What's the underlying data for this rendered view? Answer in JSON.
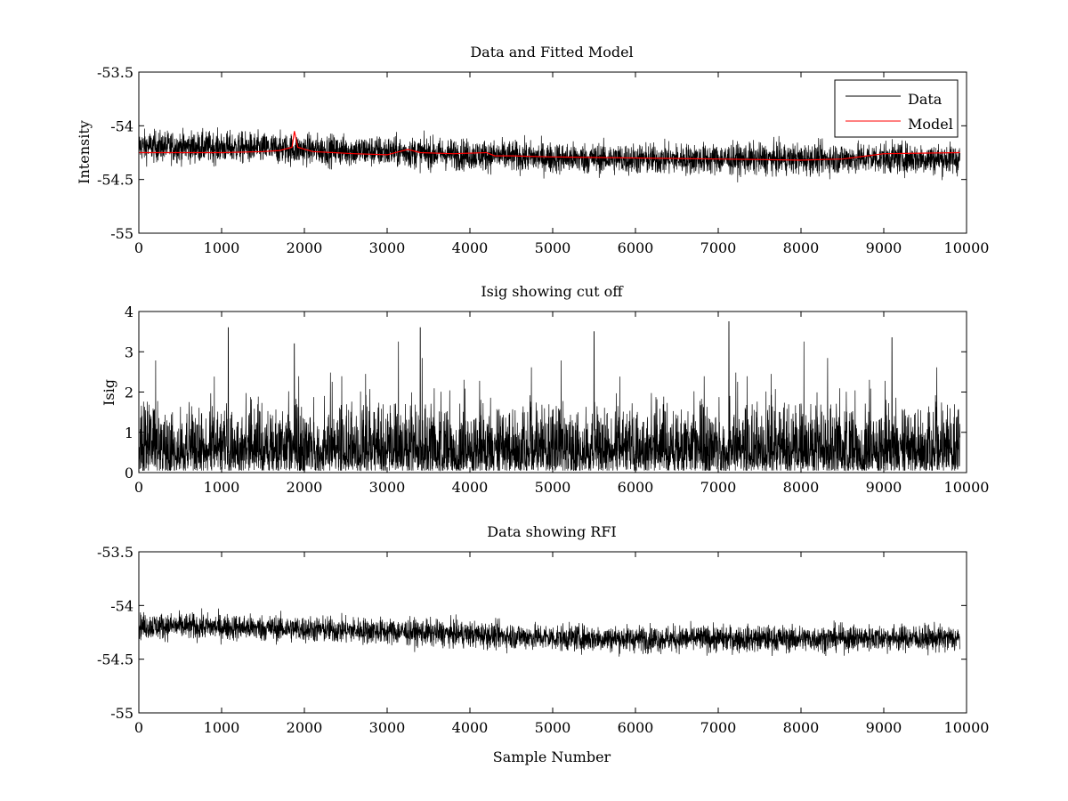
{
  "figure": {
    "background": "#ffffff",
    "data_color": "#000000",
    "model_color": "#ff0000"
  },
  "chart_data": [
    {
      "type": "line",
      "title": "Data and Fitted Model",
      "xlabel": "",
      "ylabel": "Intensity",
      "xlim": [
        0,
        10000
      ],
      "ylim": [
        -55,
        -53.5
      ],
      "xticks": [
        0,
        1000,
        2000,
        3000,
        4000,
        5000,
        6000,
        7000,
        8000,
        9000,
        10000
      ],
      "yticks": [
        -55,
        -54.5,
        -54,
        -53.5
      ],
      "ytick_labels": [
        "-55",
        "-54.5",
        "-54",
        "-53.5"
      ],
      "legend": {
        "position": "top-right",
        "entries": [
          "Data",
          "Model"
        ]
      },
      "series": [
        {
          "name": "Data",
          "color": "#000000",
          "style": "noise",
          "x_end": 9920,
          "trend_x": [
            0,
            1000,
            2000,
            3000,
            4000,
            5000,
            6000,
            7000,
            8000,
            9000,
            9920
          ],
          "trend_y": [
            -54.19,
            -54.2,
            -54.22,
            -54.24,
            -54.27,
            -54.3,
            -54.31,
            -54.31,
            -54.31,
            -54.3,
            -54.31
          ],
          "spread": 0.13
        },
        {
          "name": "Model",
          "color": "#ff0000",
          "style": "smooth",
          "x": [
            0,
            1000,
            1500,
            1700,
            1850,
            1880,
            1920,
            2100,
            2600,
            3000,
            3150,
            3250,
            3400,
            3800,
            4200,
            4300,
            4500,
            5000,
            6000,
            7000,
            8000,
            8500,
            8800,
            9000,
            9920
          ],
          "y": [
            -54.25,
            -54.25,
            -54.24,
            -54.23,
            -54.2,
            -54.05,
            -54.2,
            -54.24,
            -54.26,
            -54.27,
            -54.24,
            -54.22,
            -54.25,
            -54.26,
            -54.25,
            -54.28,
            -54.28,
            -54.29,
            -54.3,
            -54.31,
            -54.32,
            -54.31,
            -54.28,
            -54.26,
            -54.25
          ]
        }
      ]
    },
    {
      "type": "line",
      "title": "Isig showing cut off",
      "xlabel": "",
      "ylabel": "Isig",
      "xlim": [
        0,
        10000
      ],
      "ylim": [
        0,
        4
      ],
      "xticks": [
        0,
        1000,
        2000,
        3000,
        4000,
        5000,
        6000,
        7000,
        8000,
        9000,
        10000
      ],
      "yticks": [
        0,
        1,
        2,
        3,
        4
      ],
      "ytick_labels": [
        "0",
        "1",
        "2",
        "3",
        "4"
      ],
      "series": [
        {
          "color": "#000000",
          "style": "abs-noise",
          "x_end": 9920,
          "typical_max": 1.7,
          "peaks_x": [
            1080,
            1880,
            3400,
            5500,
            7130,
            9100
          ],
          "peaks_y": [
            3.6,
            3.2,
            3.6,
            3.5,
            3.75,
            3.35
          ]
        }
      ]
    },
    {
      "type": "line",
      "title": "Data showing RFI",
      "xlabel": "Sample Number",
      "ylabel": "",
      "xlim": [
        0,
        10000
      ],
      "ylim": [
        -55,
        -53.5
      ],
      "xticks": [
        0,
        1000,
        2000,
        3000,
        4000,
        5000,
        6000,
        7000,
        8000,
        9000,
        10000
      ],
      "yticks": [
        -55,
        -54.5,
        -54,
        -53.5
      ],
      "ytick_labels": [
        "-55",
        "-54.5",
        "-54",
        "-53.5"
      ],
      "series": [
        {
          "color": "#000000",
          "style": "noise",
          "x_end": 9920,
          "trend_x": [
            0,
            1000,
            2000,
            3000,
            4000,
            5000,
            6000,
            7000,
            8000,
            9000,
            9920
          ],
          "trend_y": [
            -54.19,
            -54.2,
            -54.22,
            -54.24,
            -54.27,
            -54.3,
            -54.31,
            -54.31,
            -54.31,
            -54.3,
            -54.31
          ],
          "spread": 0.11
        }
      ]
    }
  ]
}
